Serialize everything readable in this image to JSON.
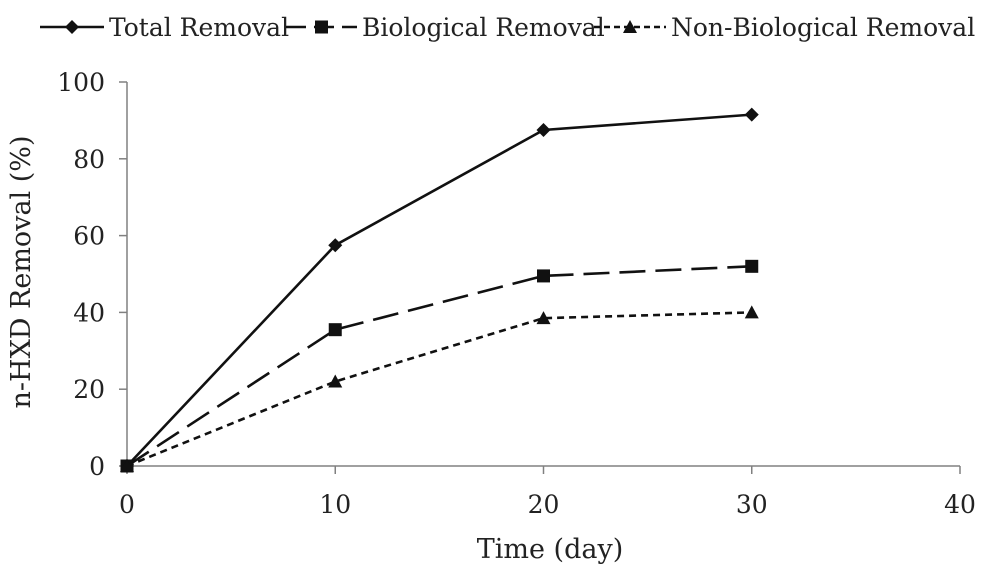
{
  "chart_data": {
    "type": "line",
    "xlabel": "Time (day)",
    "ylabel": "n-HXD Removal (%)",
    "xlim": [
      0,
      40
    ],
    "ylim": [
      0,
      100
    ],
    "xticks": [
      "0",
      "10",
      "20",
      "30",
      "40"
    ],
    "yticks": [
      "0",
      "20",
      "40",
      "60",
      "80",
      "100"
    ],
    "grid": false,
    "legend_position": "top",
    "x": [
      0,
      10,
      20,
      30
    ],
    "series": [
      {
        "name": "Total Removal",
        "values": [
          0,
          57.5,
          87.5,
          91.5
        ],
        "marker": "diamond",
        "dash": "solid",
        "color": "#111111"
      },
      {
        "name": "Biological Removal",
        "values": [
          0,
          35.5,
          49.5,
          52
        ],
        "marker": "square",
        "dash": "long-dash",
        "color": "#111111"
      },
      {
        "name": "Non-Biological Removal",
        "values": [
          0,
          22,
          38.5,
          40
        ],
        "marker": "triangle",
        "dash": "short-dash",
        "color": "#111111"
      }
    ]
  }
}
